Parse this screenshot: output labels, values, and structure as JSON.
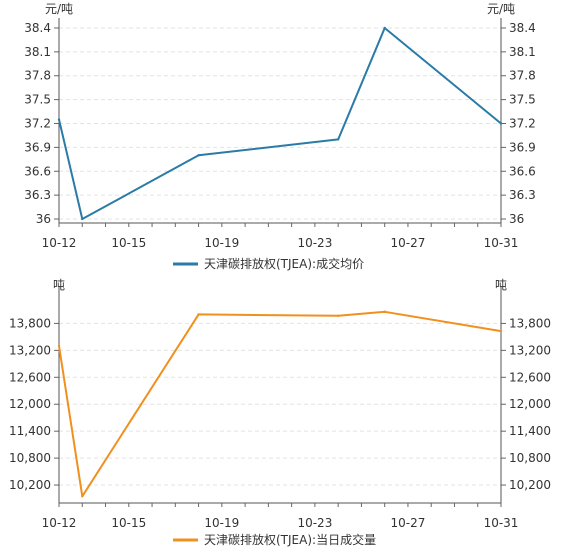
{
  "chart_data": [
    {
      "type": "line",
      "color": "#2a7ba5",
      "ylabel_left": "元/吨",
      "ylabel_right": "元/吨",
      "x": [
        "10-12",
        "10-13",
        "10-18",
        "10-24",
        "10-26",
        "10-31"
      ],
      "x_ticks": [
        "10-12",
        "10-15",
        "10-19",
        "10-23",
        "10-27",
        "10-31"
      ],
      "y_ticks": [
        "36",
        "36.3",
        "36.6",
        "36.9",
        "37.2",
        "37.5",
        "37.8",
        "38.1",
        "38.4"
      ],
      "ylim": [
        35.95,
        38.45
      ],
      "series": [
        {
          "name": "天津碳排放权(TJEA):成交均价",
          "values": [
            37.25,
            36.0,
            36.8,
            37.0,
            38.4,
            37.2
          ]
        }
      ],
      "grid": true,
      "legend_position": "bottom-center"
    },
    {
      "type": "line",
      "color": "#f0901e",
      "ylabel_left": "吨",
      "ylabel_right": "吨",
      "x": [
        "10-12",
        "10-13",
        "10-18",
        "10-24",
        "10-26",
        "10-31"
      ],
      "x_ticks": [
        "10-12",
        "10-15",
        "10-19",
        "10-23",
        "10-27",
        "10-31"
      ],
      "y_ticks": [
        "10,200",
        "10,800",
        "11,400",
        "12,000",
        "12,600",
        "13,200",
        "13,800"
      ],
      "ylim": [
        9800,
        14500
      ],
      "series": [
        {
          "name": "天津碳排放权(TJEA):当日成交量",
          "values": [
            13300,
            9950,
            14000,
            13970,
            14060,
            13630
          ]
        }
      ],
      "grid": true,
      "legend_position": "bottom-center"
    }
  ]
}
